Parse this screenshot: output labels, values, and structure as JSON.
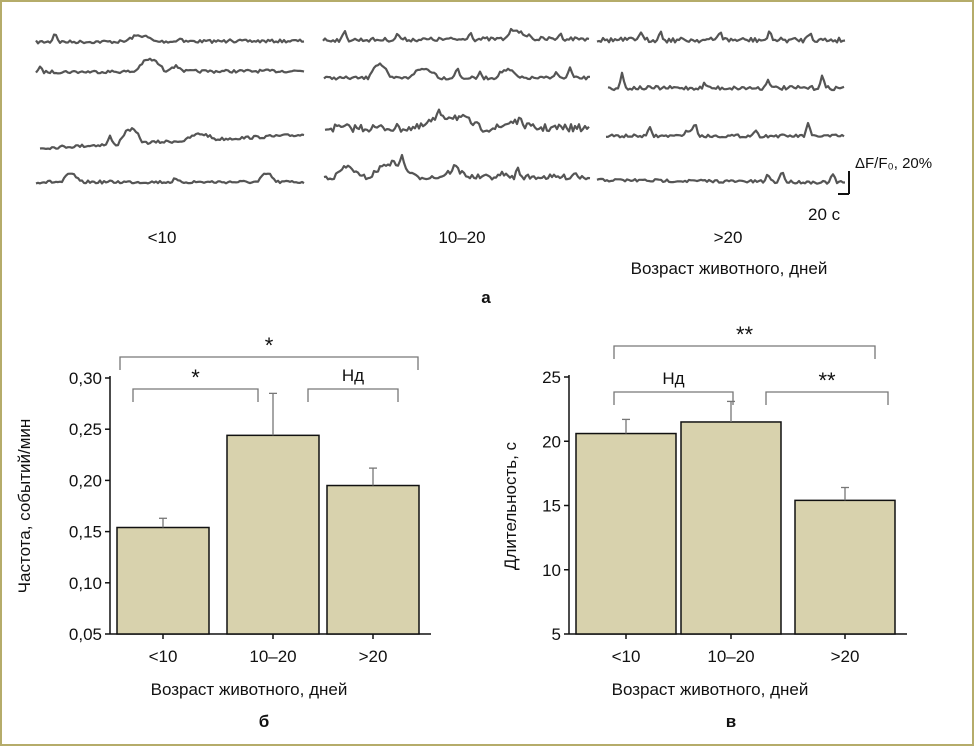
{
  "border_color": "#b5ac6a",
  "panel_a": {
    "letter": "а",
    "group_labels": [
      "<10",
      "10–20",
      ">20"
    ],
    "xlabel": "Возраст животного, дней",
    "scalebar_y": "ΔF/F₀, 20%",
    "scalebar_x": "20 с",
    "trace_color": "#555555"
  },
  "chart_data": [
    {
      "panel": "б",
      "type": "bar",
      "categories": [
        "<10",
        "10–20",
        ">20"
      ],
      "values": [
        0.154,
        0.244,
        0.195
      ],
      "errors": [
        0.009,
        0.041,
        0.017
      ],
      "ylabel": "Частота, событий/мин",
      "xlabel": "Возраст животного, дней",
      "ylim": [
        0.05,
        0.3
      ],
      "yticks": [
        "0,05",
        "0,10",
        "0,15",
        "0,20",
        "0,25",
        "0,30"
      ],
      "bar_color": "#d8d2ad",
      "grid": false,
      "significance": [
        {
          "pair": [
            "<10",
            "10–20"
          ],
          "label": "*"
        },
        {
          "pair": [
            "10–20",
            ">20"
          ],
          "label": "Нд"
        },
        {
          "pair": [
            "<10",
            ">20"
          ],
          "label": "*"
        }
      ]
    },
    {
      "panel": "в",
      "type": "bar",
      "categories": [
        "<10",
        "10–20",
        ">20"
      ],
      "values": [
        20.6,
        21.5,
        15.4
      ],
      "errors": [
        1.1,
        1.6,
        1.0
      ],
      "ylabel": "Длительность, с",
      "xlabel": "Возраст животного, дней",
      "ylim": [
        5,
        25
      ],
      "yticks": [
        "5",
        "10",
        "15",
        "20",
        "25"
      ],
      "bar_color": "#d8d2ad",
      "grid": false,
      "significance": [
        {
          "pair": [
            "<10",
            "10–20"
          ],
          "label": "Нд"
        },
        {
          "pair": [
            "10–20",
            ">20"
          ],
          "label": "**"
        },
        {
          "pair": [
            "<10",
            ">20"
          ],
          "label": "**"
        }
      ]
    }
  ]
}
